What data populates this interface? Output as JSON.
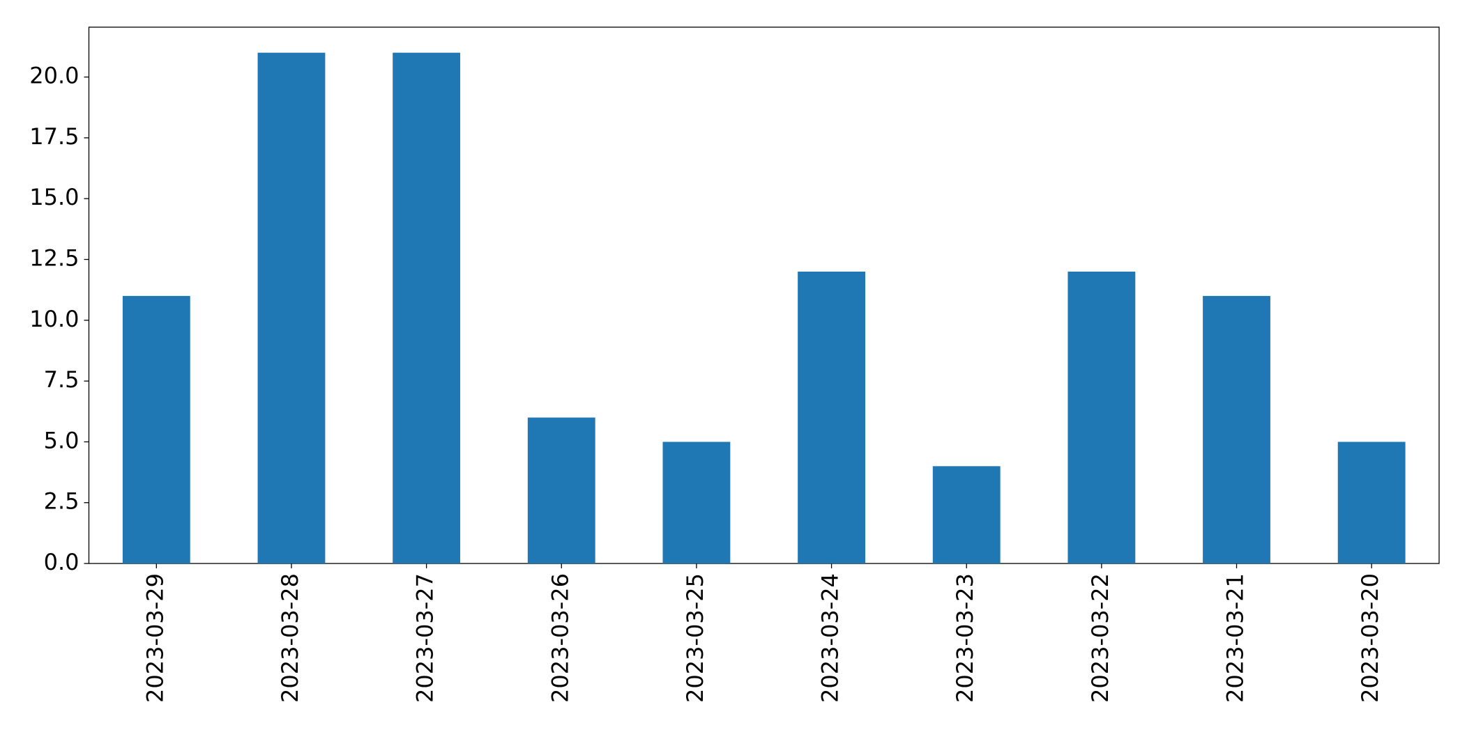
{
  "chart_data": {
    "type": "bar",
    "categories": [
      "2023-03-29",
      "2023-03-28",
      "2023-03-27",
      "2023-03-26",
      "2023-03-25",
      "2023-03-24",
      "2023-03-23",
      "2023-03-22",
      "2023-03-21",
      "2023-03-20"
    ],
    "values": [
      11,
      21,
      21,
      6,
      5,
      12,
      4,
      12,
      11,
      5
    ],
    "color": "#1f77b4",
    "ylim": [
      0,
      22.05
    ],
    "yticks": [
      {
        "value": 0,
        "label": "0.0"
      },
      2.5,
      {
        "value": 5,
        "label": "5.0"
      },
      7.5,
      {
        "value": 10,
        "label": "10.0"
      },
      12.5,
      {
        "value": 15,
        "label": "15.0"
      },
      17.5,
      {
        "value": 20,
        "label": "20.0"
      }
    ],
    "grid": false
  }
}
